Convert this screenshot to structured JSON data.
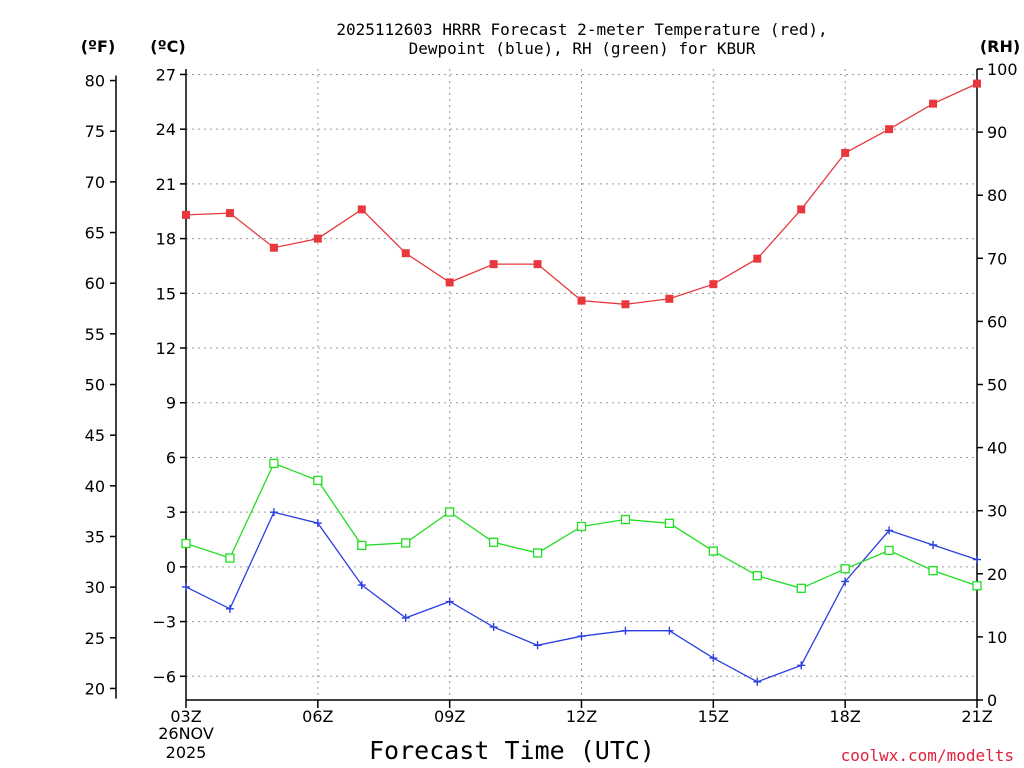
{
  "chart_data": {
    "type": "line",
    "title_line1": "2025112603 HRRR Forecast 2-meter Temperature (red),",
    "title_line2": "Dewpoint (blue), RH (green) for KBUR",
    "xlabel": "Forecast Time (UTC)",
    "x_tick_labels": [
      "03Z",
      "06Z",
      "09Z",
      "12Z",
      "15Z",
      "18Z",
      "21Z"
    ],
    "x_date_line1": "26NOV",
    "x_date_line2": "2025",
    "x_hours": [
      3,
      4,
      5,
      6,
      7,
      8,
      9,
      10,
      11,
      12,
      13,
      14,
      15,
      16,
      17,
      18,
      19,
      20,
      21
    ],
    "xlim": [
      3,
      21
    ],
    "left_axis_f": {
      "unit_label": "(ºF)",
      "ticks": [
        20,
        25,
        30,
        35,
        40,
        45,
        50,
        55,
        60,
        65,
        70,
        75,
        80
      ]
    },
    "left_axis_c": {
      "unit_label": "(ºC)",
      "ticks": [
        -6,
        -3,
        0,
        3,
        6,
        9,
        12,
        15,
        18,
        21,
        24,
        27
      ],
      "ylim": [
        -7.3,
        27.3
      ]
    },
    "right_axis_rh": {
      "unit_label": "(RH)",
      "ticks": [
        0,
        10,
        20,
        30,
        40,
        50,
        60,
        70,
        80,
        90,
        100
      ],
      "ylim": [
        0,
        100
      ]
    },
    "series": [
      {
        "name": "Temperature",
        "axis": "celsius",
        "color": "#e8383d",
        "marker": "filled-square",
        "values": [
          19.3,
          19.4,
          17.5,
          18.0,
          19.6,
          17.2,
          15.6,
          16.6,
          16.6,
          14.6,
          14.4,
          14.7,
          15.5,
          16.9,
          19.6,
          22.7,
          24.0,
          25.4,
          26.5
        ]
      },
      {
        "name": "Dewpoint",
        "axis": "celsius",
        "color": "#2a3ee0",
        "marker": "plus",
        "values": [
          -1.1,
          -2.3,
          3.0,
          2.4,
          -1.0,
          -2.8,
          -1.9,
          -3.3,
          -4.3,
          -3.8,
          -3.5,
          -3.5,
          -5.0,
          -6.3,
          -5.4,
          -0.8,
          2.0,
          1.2,
          0.4
        ]
      },
      {
        "name": "RH",
        "axis": "rh",
        "color": "#22dd22",
        "marker": "open-square",
        "values": [
          24.8,
          22.5,
          37.5,
          34.8,
          24.5,
          24.9,
          29.8,
          25.0,
          23.3,
          27.5,
          28.6,
          28.0,
          23.6,
          19.7,
          17.7,
          20.8,
          23.7,
          20.5,
          18.1
        ]
      }
    ],
    "credit": "coolwx.com/modelts"
  }
}
